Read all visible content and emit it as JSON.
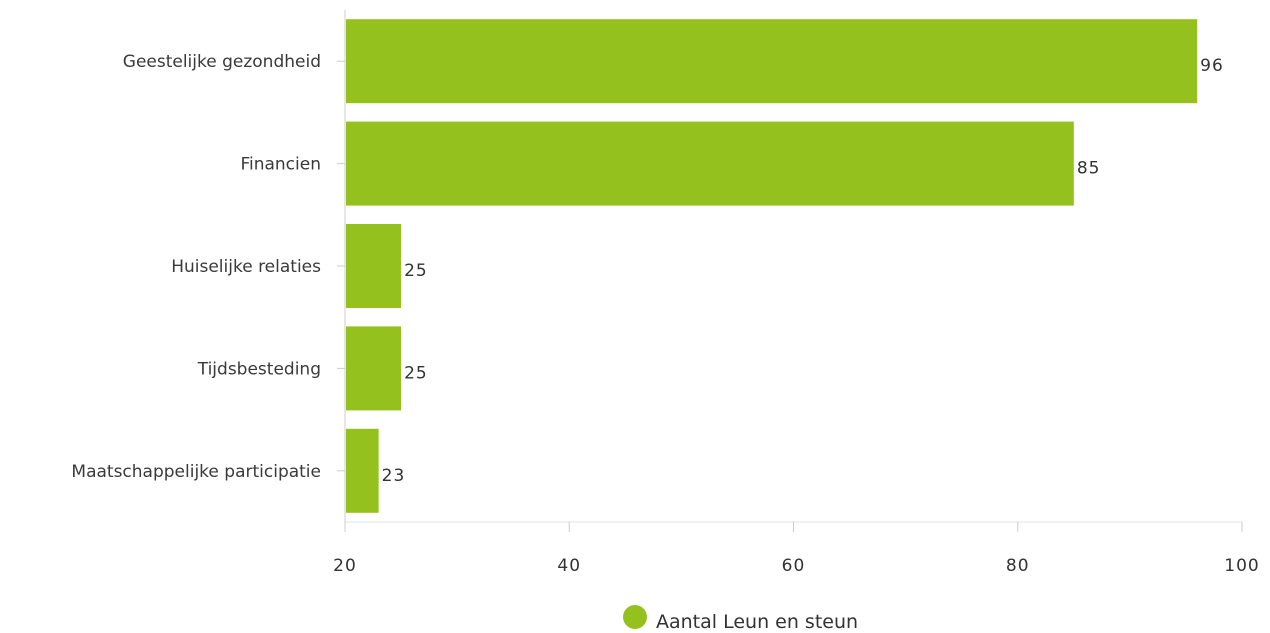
{
  "chart_data": {
    "type": "bar",
    "orientation": "horizontal",
    "categories": [
      "Geestelijke gezondheid",
      "Financien",
      "Huiselijke relaties",
      "Tijdsbesteding",
      "Maatschappelijke participatie"
    ],
    "series": [
      {
        "name": "Aantal Leun en steun",
        "values": [
          96,
          85,
          25,
          25,
          23
        ],
        "color": "#95c11f"
      }
    ],
    "xlim": [
      20,
      100
    ],
    "xticks": [
      20,
      40,
      60,
      80,
      100
    ],
    "data_labels": true,
    "grid": false,
    "legend_position": "bottom-center"
  }
}
